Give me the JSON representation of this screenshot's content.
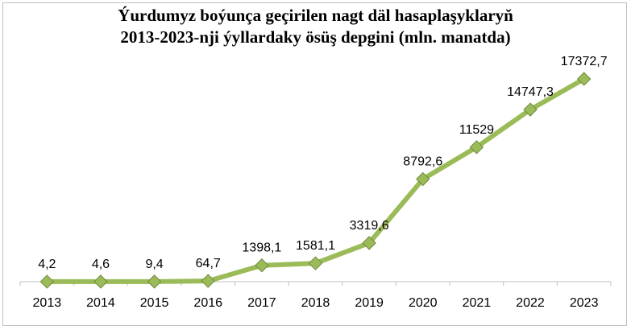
{
  "chart_data": {
    "type": "line",
    "title_lines": [
      "Ýurdumyz boýunça geçirilen nagt däl hasaplaşyklaryň",
      "2013-2023-nji ýyllardaky ösüş depgini (mln. manatda)"
    ],
    "categories": [
      "2013",
      "2014",
      "2015",
      "2016",
      "2017",
      "2018",
      "2019",
      "2020",
      "2021",
      "2022",
      "2023"
    ],
    "values": [
      4.2,
      4.6,
      9.4,
      64.7,
      1398.1,
      1581.1,
      3319.6,
      8792.6,
      11529,
      14747.3,
      17372.7
    ],
    "data_labels": [
      "4,2",
      "4,6",
      "9,4",
      "64,7",
      "1398,1",
      "1581,1",
      "3319,6",
      "8792,6",
      "11529",
      "14747,3",
      "17372,7"
    ],
    "ylim": [
      0,
      20000
    ],
    "grid": false,
    "legend": "none",
    "colors": {
      "line": "#9bbb59",
      "marker_fill": "#9bbb59",
      "marker_edge": "#71893f",
      "axis": "#bfbfbf"
    }
  }
}
